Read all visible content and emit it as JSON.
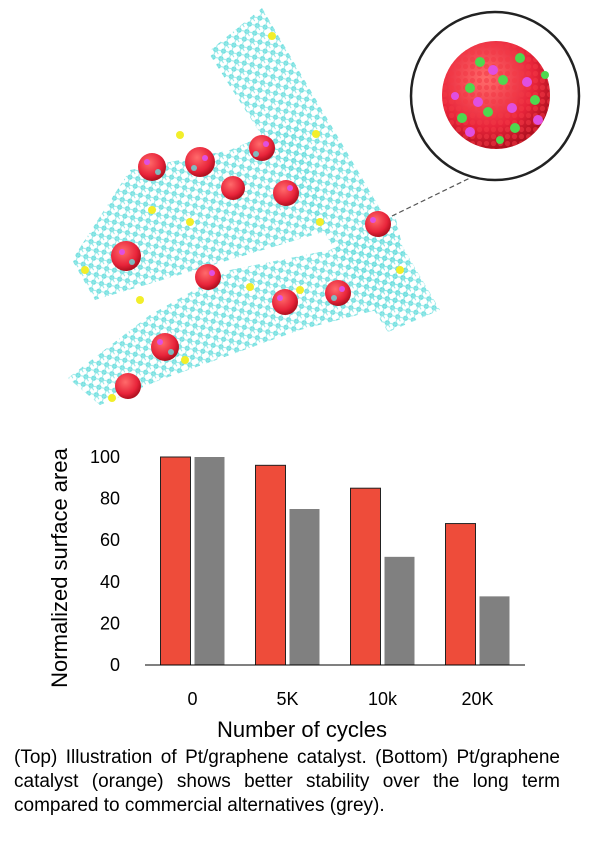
{
  "colors": {
    "bar_pt_graphene": "#EE4C3A",
    "bar_commercial": "#808080",
    "graphene": "#66DDDD",
    "platinum": "#E8243A",
    "dopant": "#F2EE2A"
  },
  "caption": "(Top) Illustration of Pt/graphene catalyst. (Bottom) Pt/graphene catalyst (orange) shows better stability over the long term compared to commercial alternatives (grey).",
  "chart_data": {
    "type": "bar",
    "categories": [
      "0",
      "5K",
      "10k",
      "20K"
    ],
    "series": [
      {
        "color": "#EE4C3A",
        "values": [
          100,
          96,
          85,
          68
        ]
      },
      {
        "color": "#808080",
        "values": [
          100,
          75,
          52,
          33
        ]
      }
    ],
    "xlabel": "Number of cycles",
    "ylabel": "Normalized surface area",
    "ylim": [
      0,
      100
    ],
    "yticks": [
      0,
      20,
      40,
      60,
      80,
      100
    ],
    "grid": false,
    "legend": "none"
  }
}
